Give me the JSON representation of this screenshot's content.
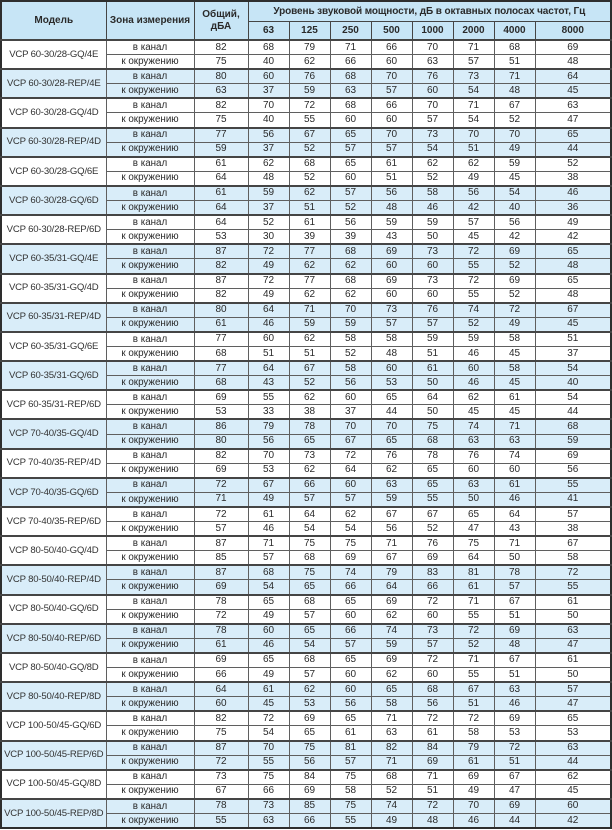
{
  "table": {
    "columns": {
      "model": "Модель",
      "zone": "Зона измерения",
      "total": "Общий, дБА",
      "band_group": "Уровень звуковой мощности, дБ в октавных полосах частот, Гц",
      "frequencies": [
        "63",
        "125",
        "250",
        "500",
        "1000",
        "2000",
        "4000",
        "8000"
      ]
    },
    "zone_labels": {
      "duct": "в канал",
      "surround": "к окружению"
    },
    "groups": [
      {
        "model": "VCP 60-30/28-GQ/4E",
        "shaded": false,
        "rows": [
          {
            "zone": "в канал",
            "total": 82,
            "bands": [
              68,
              79,
              71,
              66,
              70,
              71,
              68,
              69
            ]
          },
          {
            "zone": "к окружению",
            "total": 75,
            "bands": [
              40,
              62,
              66,
              60,
              63,
              57,
              51,
              48
            ]
          }
        ]
      },
      {
        "model": "VCP 60-30/28-REP/4E",
        "shaded": true,
        "rows": [
          {
            "zone": "в канал",
            "total": 80,
            "bands": [
              60,
              76,
              68,
              70,
              76,
              73,
              71,
              64
            ]
          },
          {
            "zone": "к окружению",
            "total": 63,
            "bands": [
              37,
              59,
              63,
              57,
              60,
              54,
              48,
              45
            ]
          }
        ]
      },
      {
        "model": "VCP 60-30/28-GQ/4D",
        "shaded": false,
        "rows": [
          {
            "zone": "в канал",
            "total": 82,
            "bands": [
              70,
              72,
              68,
              66,
              70,
              71,
              67,
              63
            ]
          },
          {
            "zone": "к окружению",
            "total": 75,
            "bands": [
              40,
              55,
              60,
              60,
              57,
              54,
              52,
              47
            ]
          }
        ]
      },
      {
        "model": "VCP 60-30/28-REP/4D",
        "shaded": true,
        "rows": [
          {
            "zone": "в канал",
            "total": 77,
            "bands": [
              56,
              67,
              65,
              70,
              73,
              70,
              70,
              65
            ]
          },
          {
            "zone": "к окружению",
            "total": 59,
            "bands": [
              37,
              52,
              57,
              57,
              54,
              51,
              49,
              44
            ]
          }
        ]
      },
      {
        "model": "VCP 60-30/28-GQ/6E",
        "shaded": false,
        "rows": [
          {
            "zone": "в канал",
            "total": 61,
            "bands": [
              62,
              68,
              65,
              61,
              62,
              62,
              59,
              52
            ]
          },
          {
            "zone": "к окружению",
            "total": 64,
            "bands": [
              48,
              52,
              60,
              51,
              52,
              49,
              45,
              38
            ]
          }
        ]
      },
      {
        "model": "VCP 60-30/28-GQ/6D",
        "shaded": true,
        "rows": [
          {
            "zone": "в канал",
            "total": 61,
            "bands": [
              59,
              62,
              57,
              56,
              58,
              56,
              54,
              46
            ]
          },
          {
            "zone": "к окружению",
            "total": 64,
            "bands": [
              37,
              51,
              52,
              48,
              46,
              42,
              40,
              36
            ]
          }
        ]
      },
      {
        "model": "VCP 60-30/28-REP/6D",
        "shaded": false,
        "rows": [
          {
            "zone": "в канал",
            "total": 64,
            "bands": [
              52,
              61,
              56,
              59,
              59,
              57,
              56,
              49
            ]
          },
          {
            "zone": "к окружению",
            "total": 53,
            "bands": [
              30,
              39,
              39,
              43,
              50,
              45,
              42,
              42
            ]
          }
        ]
      },
      {
        "model": "VCP 60-35/31-GQ/4E",
        "shaded": true,
        "rows": [
          {
            "zone": "в канал",
            "total": 87,
            "bands": [
              72,
              77,
              68,
              69,
              73,
              72,
              69,
              65
            ]
          },
          {
            "zone": "к окружению",
            "total": 82,
            "bands": [
              49,
              62,
              62,
              60,
              60,
              55,
              52,
              48
            ]
          }
        ]
      },
      {
        "model": "VCP 60-35/31-GQ/4D",
        "shaded": false,
        "rows": [
          {
            "zone": "в канал",
            "total": 87,
            "bands": [
              72,
              77,
              68,
              69,
              73,
              72,
              69,
              65
            ]
          },
          {
            "zone": "к окружению",
            "total": 82,
            "bands": [
              49,
              62,
              62,
              60,
              60,
              55,
              52,
              48
            ]
          }
        ]
      },
      {
        "model": "VCP 60-35/31-REP/4D",
        "shaded": true,
        "rows": [
          {
            "zone": "в канал",
            "total": 80,
            "bands": [
              64,
              71,
              70,
              73,
              76,
              74,
              72,
              67
            ]
          },
          {
            "zone": "к окружению",
            "total": 61,
            "bands": [
              46,
              59,
              59,
              57,
              57,
              52,
              49,
              45
            ]
          }
        ]
      },
      {
        "model": "VCP 60-35/31-GQ/6E",
        "shaded": false,
        "rows": [
          {
            "zone": "в канал",
            "total": 77,
            "bands": [
              60,
              62,
              58,
              58,
              59,
              59,
              58,
              51
            ]
          },
          {
            "zone": "к окружению",
            "total": 68,
            "bands": [
              51,
              51,
              52,
              48,
              51,
              46,
              45,
              37
            ]
          }
        ]
      },
      {
        "model": "VCP 60-35/31-GQ/6D",
        "shaded": true,
        "rows": [
          {
            "zone": "в канал",
            "total": 77,
            "bands": [
              64,
              67,
              58,
              60,
              61,
              60,
              58,
              54
            ]
          },
          {
            "zone": "к окружению",
            "total": 68,
            "bands": [
              43,
              52,
              56,
              53,
              50,
              46,
              45,
              40
            ]
          }
        ]
      },
      {
        "model": "VCP 60-35/31-REP/6D",
        "shaded": false,
        "rows": [
          {
            "zone": "в канал",
            "total": 69,
            "bands": [
              55,
              62,
              60,
              65,
              64,
              62,
              61,
              54
            ]
          },
          {
            "zone": "к окружению",
            "total": 53,
            "bands": [
              33,
              38,
              37,
              44,
              50,
              45,
              45,
              44
            ]
          }
        ]
      },
      {
        "model": "VCP 70-40/35-GQ/4D",
        "shaded": true,
        "rows": [
          {
            "zone": "в канал",
            "total": 86,
            "bands": [
              79,
              78,
              70,
              70,
              75,
              74,
              71,
              68
            ]
          },
          {
            "zone": "к окружению",
            "total": 80,
            "bands": [
              56,
              65,
              67,
              65,
              68,
              63,
              63,
              59
            ]
          }
        ]
      },
      {
        "model": "VCP 70-40/35-REP/4D",
        "shaded": false,
        "rows": [
          {
            "zone": "в канал",
            "total": 82,
            "bands": [
              70,
              73,
              72,
              76,
              78,
              76,
              74,
              69
            ]
          },
          {
            "zone": "к окружению",
            "total": 69,
            "bands": [
              53,
              62,
              64,
              62,
              65,
              60,
              60,
              56
            ]
          }
        ]
      },
      {
        "model": "VCP 70-40/35-GQ/6D",
        "shaded": true,
        "rows": [
          {
            "zone": "в канал",
            "total": 72,
            "bands": [
              67,
              66,
              60,
              63,
              65,
              63,
              61,
              55
            ]
          },
          {
            "zone": "к окружению",
            "total": 71,
            "bands": [
              49,
              57,
              57,
              59,
              55,
              50,
              46,
              41
            ]
          }
        ]
      },
      {
        "model": "VCP 70-40/35-REP/6D",
        "shaded": false,
        "rows": [
          {
            "zone": "в канал",
            "total": 72,
            "bands": [
              61,
              64,
              62,
              67,
              67,
              65,
              64,
              57
            ]
          },
          {
            "zone": "к окружению",
            "total": 57,
            "bands": [
              46,
              54,
              54,
              56,
              52,
              47,
              43,
              38
            ]
          }
        ]
      },
      {
        "model": "VCP 80-50/40-GQ/4D",
        "shaded": false,
        "rows": [
          {
            "zone": "в канал",
            "total": 87,
            "bands": [
              71,
              75,
              75,
              71,
              76,
              75,
              71,
              67
            ]
          },
          {
            "zone": "к окружению",
            "total": 85,
            "bands": [
              57,
              68,
              69,
              67,
              69,
              64,
              50,
              58
            ]
          }
        ]
      },
      {
        "model": "VCP 80-50/40-REP/4D",
        "shaded": true,
        "rows": [
          {
            "zone": "в канал",
            "total": 87,
            "bands": [
              68,
              75,
              74,
              79,
              83,
              81,
              78,
              72
            ]
          },
          {
            "zone": "к окружению",
            "total": 69,
            "bands": [
              54,
              65,
              66,
              64,
              66,
              61,
              57,
              55
            ]
          }
        ]
      },
      {
        "model": "VCP 80-50/40-GQ/6D",
        "shaded": false,
        "rows": [
          {
            "zone": "в канал",
            "total": 78,
            "bands": [
              65,
              68,
              65,
              69,
              72,
              71,
              67,
              61
            ]
          },
          {
            "zone": "к окружению",
            "total": 72,
            "bands": [
              49,
              57,
              60,
              62,
              60,
              55,
              51,
              50
            ]
          }
        ]
      },
      {
        "model": "VCP 80-50/40-REP/6D",
        "shaded": true,
        "rows": [
          {
            "zone": "в канал",
            "total": 78,
            "bands": [
              60,
              65,
              66,
              74,
              73,
              72,
              69,
              63
            ]
          },
          {
            "zone": "к окружению",
            "total": 61,
            "bands": [
              46,
              54,
              57,
              59,
              57,
              52,
              48,
              47
            ]
          }
        ]
      },
      {
        "model": "VCP 80-50/40-GQ/8D",
        "shaded": false,
        "rows": [
          {
            "zone": "в канал",
            "total": 69,
            "bands": [
              65,
              68,
              65,
              69,
              72,
              71,
              67,
              61
            ]
          },
          {
            "zone": "к окружению",
            "total": 66,
            "bands": [
              49,
              57,
              60,
              62,
              60,
              55,
              51,
              50
            ]
          }
        ]
      },
      {
        "model": "VCP 80-50/40-REP/8D",
        "shaded": true,
        "rows": [
          {
            "zone": "в канал",
            "total": 64,
            "bands": [
              61,
              62,
              60,
              65,
              68,
              67,
              63,
              57
            ]
          },
          {
            "zone": "к окружению",
            "total": 60,
            "bands": [
              45,
              53,
              56,
              58,
              56,
              51,
              46,
              47
            ]
          }
        ]
      },
      {
        "model": "VCP 100-50/45-GQ/6D",
        "shaded": false,
        "rows": [
          {
            "zone": "в канал",
            "total": 82,
            "bands": [
              72,
              69,
              65,
              71,
              72,
              72,
              69,
              65
            ]
          },
          {
            "zone": "к окружению",
            "total": 75,
            "bands": [
              54,
              65,
              61,
              63,
              61,
              58,
              53,
              53
            ]
          }
        ]
      },
      {
        "model": "VCP 100-50/45-REP/6D",
        "shaded": true,
        "rows": [
          {
            "zone": "в канал",
            "total": 87,
            "bands": [
              70,
              75,
              81,
              82,
              84,
              79,
              72,
              63
            ]
          },
          {
            "zone": "к окружению",
            "total": 72,
            "bands": [
              55,
              56,
              57,
              71,
              69,
              61,
              51,
              44
            ]
          }
        ]
      },
      {
        "model": "VCP 100-50/45-GQ/8D",
        "shaded": false,
        "rows": [
          {
            "zone": "в канал",
            "total": 73,
            "bands": [
              75,
              84,
              75,
              68,
              71,
              69,
              67,
              62
            ]
          },
          {
            "zone": "к окружению",
            "total": 67,
            "bands": [
              66,
              69,
              58,
              52,
              51,
              49,
              47,
              45
            ]
          }
        ]
      },
      {
        "model": "VCP 100-50/45-REP/8D",
        "shaded": true,
        "rows": [
          {
            "zone": "в канал",
            "total": 78,
            "bands": [
              73,
              85,
              75,
              74,
              72,
              70,
              69,
              60
            ]
          },
          {
            "zone": "к окружению",
            "total": 55,
            "bands": [
              63,
              66,
              55,
              49,
              48,
              46,
              44,
              42
            ]
          }
        ]
      }
    ]
  },
  "colors": {
    "header_bg": "#c7e5f6",
    "stripe_bg": "#d9edf9",
    "border_dark": "#454545",
    "border_outer": "#2e2e2e",
    "text": "#2a2a2a"
  }
}
